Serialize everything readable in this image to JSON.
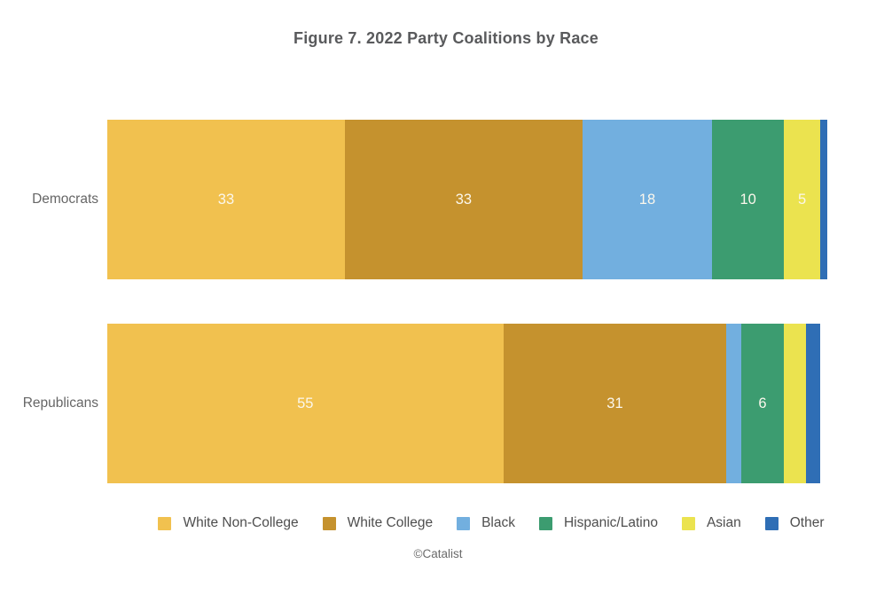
{
  "title": "Figure 7. 2022 Party Coalitions by Race",
  "footer": "©Catalist",
  "chart_data": {
    "type": "bar",
    "orientation": "horizontal-stacked",
    "title": "Figure 7. 2022 Party Coalitions by Race",
    "categories": [
      "Democrats",
      "Republicans"
    ],
    "series": [
      {
        "name": "White Non-College",
        "color": "#F1C14F",
        "values": [
          33,
          55
        ]
      },
      {
        "name": "White College",
        "color": "#C5922E",
        "values": [
          33,
          31
        ]
      },
      {
        "name": "Black",
        "color": "#72AFDF",
        "values": [
          18,
          2
        ]
      },
      {
        "name": "Hispanic/Latino",
        "color": "#3C9C70",
        "values": [
          10,
          6
        ]
      },
      {
        "name": "Asian",
        "color": "#EBE34F",
        "values": [
          5,
          3
        ]
      },
      {
        "name": "Other",
        "color": "#2F6EB5",
        "values": [
          1,
          2
        ]
      }
    ],
    "label_min_value": 5,
    "value_label_color": "#fbf7ec",
    "xlim": [
      0,
      100
    ],
    "grid": false,
    "legend_position": "bottom",
    "attribution": "©Catalist"
  }
}
